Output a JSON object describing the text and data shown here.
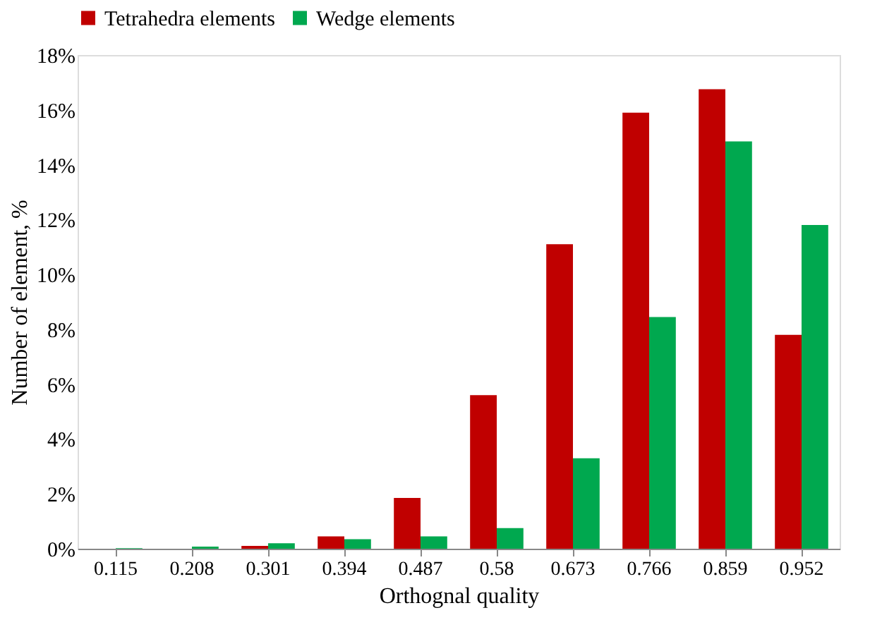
{
  "chart_data": {
    "type": "bar",
    "xlabel": "Orthognal quality",
    "ylabel": "Number of element, %",
    "categories": [
      "0.115",
      "0.208",
      "0.301",
      "0.394",
      "0.487",
      "0.58",
      "0.673",
      "0.766",
      "0.859",
      "0.952"
    ],
    "series": [
      {
        "name": "Tetrahedra elements",
        "color": "#c00000",
        "values": [
          0,
          0,
          0.1,
          0.45,
          1.85,
          5.6,
          11.1,
          15.9,
          16.75,
          7.8
        ]
      },
      {
        "name": "Wedge elements",
        "color": "#00a84f",
        "values": [
          0.02,
          0.08,
          0.2,
          0.35,
          0.45,
          0.75,
          3.3,
          8.45,
          14.85,
          11.8
        ]
      }
    ],
    "ylim": [
      0,
      18
    ],
    "yticks": [
      {
        "value": 0,
        "label": "0%"
      },
      {
        "value": 2,
        "label": "2%"
      },
      {
        "value": 4,
        "label": "4%"
      },
      {
        "value": 6,
        "label": "6%"
      },
      {
        "value": 8,
        "label": "8%"
      },
      {
        "value": 10,
        "label": "10%"
      },
      {
        "value": 12,
        "label": "12%"
      },
      {
        "value": 14,
        "label": "14%"
      },
      {
        "value": 16,
        "label": "16%"
      },
      {
        "value": 18,
        "label": "18%"
      }
    ],
    "legend": "top",
    "grid": false
  }
}
